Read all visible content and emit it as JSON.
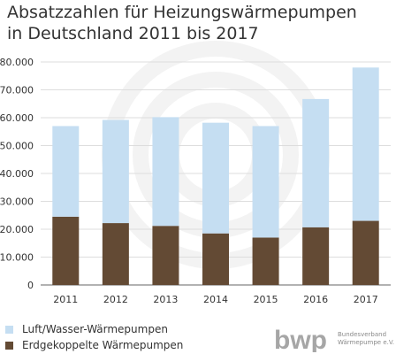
{
  "chart_data": {
    "type": "bar",
    "stacked": true,
    "title_lines": [
      "Absatzzahlen für Heizungswärmepumpen",
      "in Deutschland 2011 bis 2017"
    ],
    "categories": [
      "2011",
      "2012",
      "2013",
      "2014",
      "2015",
      "2016",
      "2017"
    ],
    "series": [
      {
        "name": "Erdgekoppelte Wärmepumpen",
        "color": "#634a34",
        "values": [
          24500,
          22200,
          21200,
          18500,
          17000,
          20700,
          23000
        ]
      },
      {
        "name": "Luft/Wasser-Wärmepumpen",
        "color": "#c5def2",
        "values": [
          32500,
          37000,
          39000,
          39700,
          40000,
          46000,
          55000
        ]
      }
    ],
    "yticks": [
      "0",
      "10.000",
      "20.000",
      "30.000",
      "40.000",
      "50.000",
      "60.000",
      "70.000",
      "80.000"
    ],
    "ylim": [
      0,
      80000
    ],
    "grid": true,
    "legend_position": "bottom-left"
  },
  "logo": {
    "mark": "bwp",
    "line1": "Bundesverband",
    "line2": "Wärmepumpe e.V."
  }
}
